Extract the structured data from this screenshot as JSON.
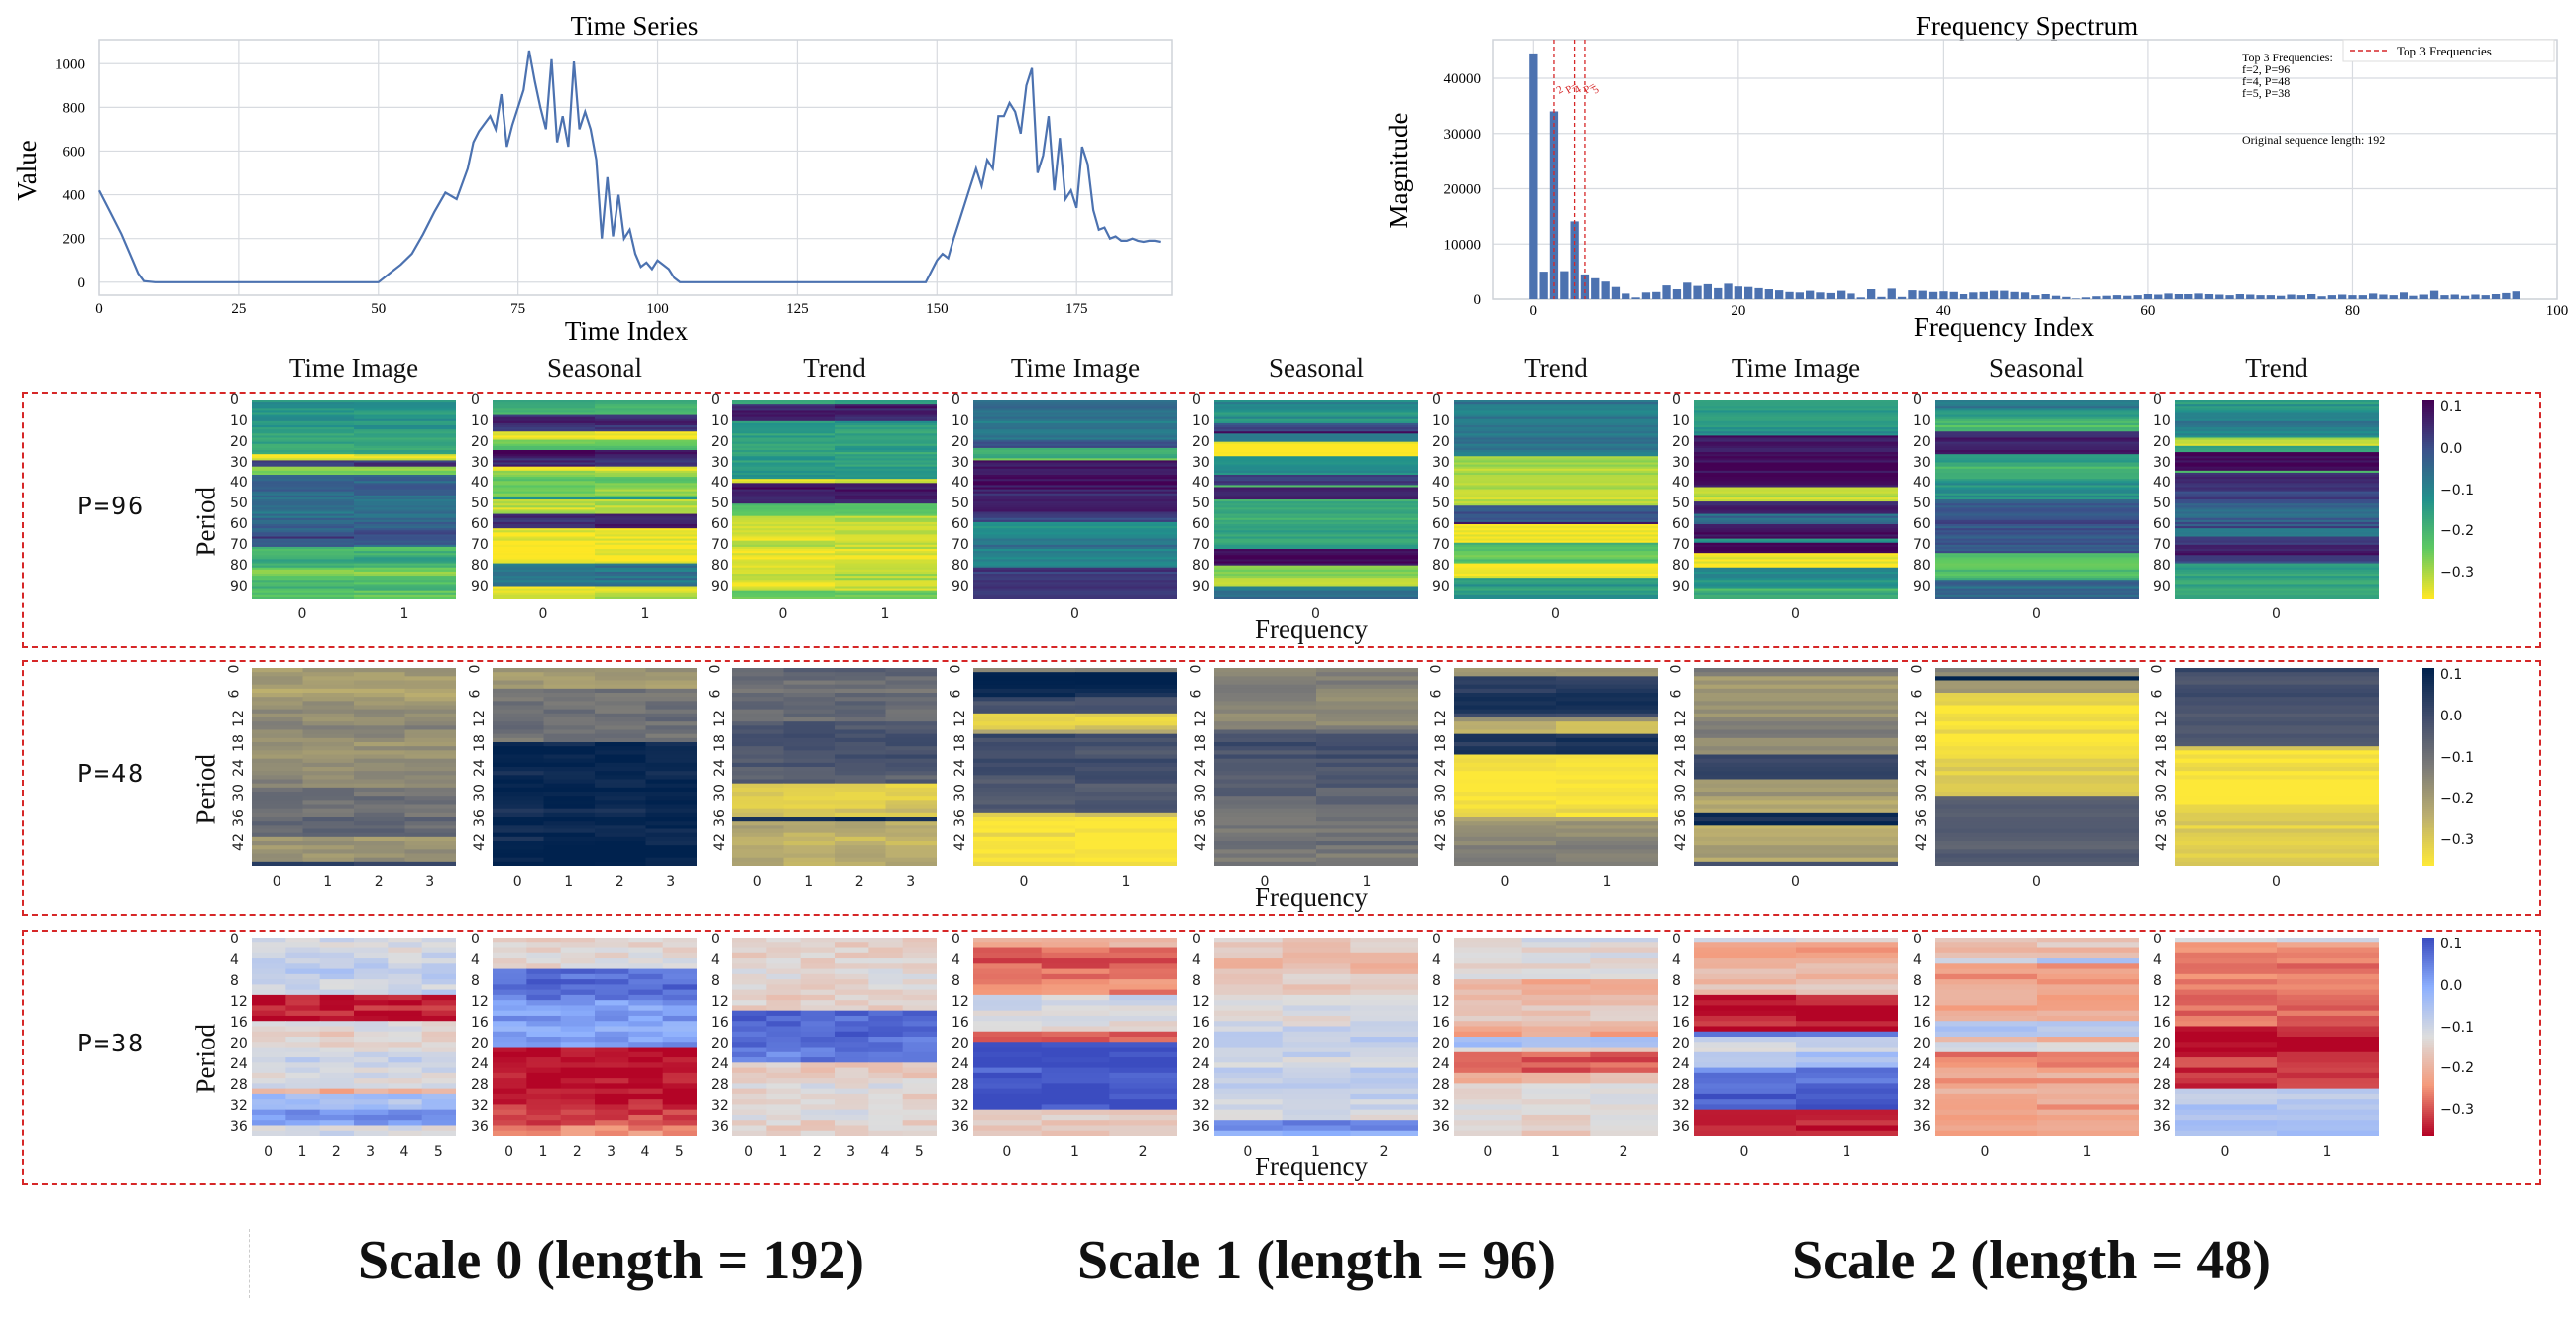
{
  "chart_data": [
    {
      "type": "line",
      "title": "Time Series",
      "xlabel": "Time Index",
      "ylabel": "Value",
      "xlim": [
        0,
        192
      ],
      "ylim": [
        -60,
        1110
      ],
      "xticks": [
        "0",
        "25",
        "50",
        "75",
        "100",
        "125",
        "150",
        "175"
      ],
      "yticks": [
        "0",
        "200",
        "400",
        "600",
        "800",
        "1000"
      ],
      "grid": true,
      "x": [
        0,
        2,
        4,
        6,
        7,
        8,
        10,
        20,
        30,
        40,
        50,
        52,
        54,
        56,
        58,
        60,
        62,
        64,
        66,
        67,
        68,
        70,
        71,
        72,
        73,
        74,
        75,
        76,
        77,
        78,
        79,
        80,
        81,
        82,
        83,
        84,
        85,
        86,
        87,
        88,
        89,
        90,
        91,
        92,
        93,
        94,
        95,
        96,
        97,
        98,
        99,
        100,
        101,
        102,
        103,
        104,
        105,
        110,
        120,
        130,
        140,
        148,
        150,
        151,
        152,
        153,
        154,
        155,
        156,
        157,
        158,
        159,
        160,
        161,
        162,
        163,
        164,
        165,
        166,
        167,
        168,
        169,
        170,
        171,
        172,
        173,
        174,
        175,
        176,
        177,
        178,
        179,
        180,
        181,
        182,
        183,
        184,
        185,
        186,
        187,
        188,
        189,
        190
      ],
      "values": [
        420,
        320,
        220,
        100,
        40,
        5,
        0,
        0,
        0,
        0,
        0,
        40,
        80,
        130,
        220,
        320,
        410,
        380,
        520,
        640,
        690,
        760,
        700,
        860,
        620,
        720,
        800,
        880,
        1060,
        920,
        800,
        700,
        1020,
        640,
        760,
        620,
        1010,
        700,
        780,
        700,
        560,
        200,
        480,
        210,
        400,
        200,
        240,
        130,
        70,
        90,
        60,
        100,
        80,
        60,
        20,
        0,
        0,
        0,
        0,
        0,
        0,
        0,
        100,
        130,
        110,
        200,
        280,
        360,
        440,
        520,
        440,
        560,
        520,
        760,
        760,
        820,
        780,
        680,
        900,
        980,
        500,
        580,
        760,
        420,
        660,
        380,
        420,
        340,
        620,
        540,
        330,
        240,
        250,
        200,
        210,
        190,
        190,
        200,
        190,
        185,
        190,
        190,
        185
      ]
    },
    {
      "type": "bar",
      "title": "Frequency Spectrum",
      "xlabel": "Frequency Index",
      "ylabel": "Magnitude",
      "xlim": [
        -4,
        100
      ],
      "ylim": [
        0,
        47000
      ],
      "xticks": [
        "0",
        "20",
        "40",
        "60",
        "80",
        "100"
      ],
      "yticks": [
        "0",
        "10000",
        "20000",
        "30000",
        "40000"
      ],
      "x": [
        0,
        1,
        2,
        3,
        4,
        5,
        6,
        7,
        8,
        9,
        10,
        11,
        12,
        13,
        14,
        15,
        16,
        17,
        18,
        19,
        20,
        21,
        22,
        23,
        24,
        25,
        26,
        27,
        28,
        29,
        30,
        31,
        32,
        33,
        34,
        35,
        36,
        37,
        38,
        39,
        40,
        41,
        42,
        43,
        44,
        45,
        46,
        47,
        48,
        49,
        50,
        51,
        52,
        53,
        54,
        55,
        56,
        57,
        58,
        59,
        60,
        61,
        62,
        63,
        64,
        65,
        66,
        67,
        68,
        69,
        70,
        71,
        72,
        73,
        74,
        75,
        76,
        77,
        78,
        79,
        80,
        81,
        82,
        83,
        84,
        85,
        86,
        87,
        88,
        89,
        90,
        91,
        92,
        93,
        94,
        95,
        96
      ],
      "values": [
        44500,
        5000,
        34000,
        5100,
        14100,
        4500,
        3800,
        3200,
        2200,
        1000,
        300,
        1200,
        1300,
        2500,
        1800,
        3000,
        2400,
        2700,
        2000,
        2800,
        2300,
        2200,
        2000,
        1800,
        1600,
        1300,
        1200,
        1500,
        1200,
        1100,
        1500,
        1000,
        300,
        1800,
        400,
        1900,
        400,
        1600,
        1500,
        1300,
        1400,
        1300,
        900,
        1200,
        1300,
        1500,
        1500,
        1300,
        1200,
        700,
        900,
        600,
        400,
        100,
        300,
        500,
        600,
        700,
        600,
        700,
        900,
        800,
        1000,
        900,
        900,
        1000,
        900,
        800,
        700,
        900,
        800,
        700,
        700,
        600,
        800,
        700,
        900,
        500,
        700,
        800,
        700,
        700,
        1000,
        800,
        700,
        1200,
        600,
        800,
        1500,
        700,
        800,
        600,
        800,
        700,
        900,
        1100,
        1400
      ],
      "top_lines": [
        2,
        4,
        5
      ],
      "line_annotations": [
        "2",
        "P=",
        "4",
        "P=",
        "5"
      ],
      "legend": "Top 3 Frequencies",
      "legend_position": "top-right",
      "info_lines": [
        "Top 3 Frequencies:",
        "f=2, P=96",
        "f=4, P=48",
        "f=5, P=38"
      ],
      "info_note": "Original sequence length: 192"
    },
    {
      "type": "heatmap",
      "row_label": "P=96",
      "ylabel": "Period",
      "xlabel": "Frequency",
      "yticks": [
        "0",
        "10",
        "20",
        "30",
        "40",
        "50",
        "60",
        "70",
        "80",
        "90"
      ],
      "panel_titles": [
        "Time Image",
        "Seasonal",
        "Trend",
        "Time Image",
        "Seasonal",
        "Trend",
        "Time Image",
        "Seasonal",
        "Trend"
      ],
      "columns_per_panel": [
        2,
        2,
        2,
        1,
        1,
        1,
        1,
        1,
        1
      ],
      "xticks_per_panel": [
        [
          "0",
          "1"
        ],
        [
          "0",
          "1"
        ],
        [
          "0",
          "1"
        ],
        [
          "0"
        ],
        [
          "0"
        ],
        [
          "0"
        ],
        [
          "0"
        ],
        [
          "0"
        ],
        [
          "0"
        ]
      ],
      "colormap": "viridis_r",
      "colorbar_ticks": [
        "0.1",
        "0.0",
        "−0.1",
        "−0.2",
        "−0.3"
      ],
      "colorbar_range": [
        -0.36,
        0.12
      ]
    },
    {
      "type": "heatmap",
      "row_label": "P=48",
      "ylabel": "Period",
      "xlabel": "Frequency",
      "yticks": [
        "0",
        "6",
        "12",
        "18",
        "24",
        "30",
        "36",
        "42"
      ],
      "panel_titles": [
        "Time Image",
        "Seasonal",
        "Trend",
        "Time Image",
        "Seasonal",
        "Trend",
        "Time Image",
        "Seasonal",
        "Trend"
      ],
      "columns_per_panel": [
        4,
        4,
        4,
        2,
        2,
        2,
        1,
        1,
        1
      ],
      "xticks_per_panel": [
        [
          "0",
          "1",
          "2",
          "3"
        ],
        [
          "0",
          "1",
          "2",
          "3"
        ],
        [
          "0",
          "1",
          "2",
          "3"
        ],
        [
          "0",
          "1"
        ],
        [
          "0",
          "1"
        ],
        [
          "0",
          "1"
        ],
        [
          "0"
        ],
        [
          "0"
        ],
        [
          "0"
        ]
      ],
      "colormap": "cividis_r",
      "colorbar_ticks": [
        "0.1",
        "0.0",
        "−0.1",
        "−0.2",
        "−0.3"
      ],
      "colorbar_range": [
        -0.36,
        0.12
      ]
    },
    {
      "type": "heatmap",
      "row_label": "P=38",
      "ylabel": "Period",
      "xlabel": "Frequency",
      "yticks": [
        "0",
        "4",
        "8",
        "12",
        "16",
        "20",
        "24",
        "28",
        "32",
        "36"
      ],
      "panel_titles": [
        "Time Image",
        "Seasonal",
        "Trend",
        "Time Image",
        "Seasonal",
        "Trend",
        "Time Image",
        "Seasonal",
        "Trend"
      ],
      "columns_per_panel": [
        6,
        6,
        6,
        3,
        3,
        3,
        2,
        2,
        2
      ],
      "xticks_per_panel": [
        [
          "0",
          "1",
          "2",
          "3",
          "4",
          "5"
        ],
        [
          "0",
          "1",
          "2",
          "3",
          "4",
          "5"
        ],
        [
          "0",
          "1",
          "2",
          "3",
          "4",
          "5"
        ],
        [
          "0",
          "1",
          "2"
        ],
        [
          "0",
          "1",
          "2"
        ],
        [
          "0",
          "1",
          "2"
        ],
        [
          "0",
          "1"
        ],
        [
          "0",
          "1"
        ],
        [
          "0",
          "1"
        ]
      ],
      "colormap": "coolwarm_r",
      "colorbar_ticks": [
        "0.1",
        "0.0",
        "−0.1",
        "−0.2",
        "−0.3"
      ],
      "colorbar_range": [
        -0.36,
        0.12
      ]
    }
  ],
  "captions": [
    "Scale 0 (length = 192)",
    "Scale 1 (length = 96)",
    "Scale 2 (length = 48)"
  ]
}
